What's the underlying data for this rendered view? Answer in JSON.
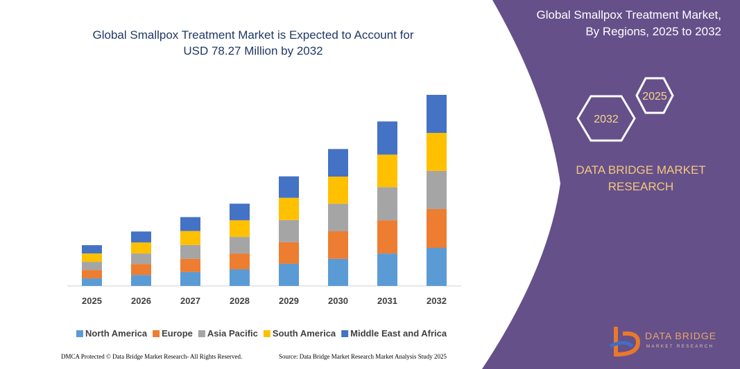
{
  "chart_data": {
    "type": "stacked-bar",
    "title": [
      "Global Smallpox Treatment Market is Expected to Account for",
      "USD 78.27 Million by 2032"
    ],
    "categories": [
      "2025",
      "2026",
      "2027",
      "2028",
      "2029",
      "2030",
      "2031",
      "2032"
    ],
    "series": [
      {
        "name": "North America",
        "color": "#5b9bd5",
        "values": [
          3.1,
          4.5,
          5.7,
          6.8,
          9.1,
          11.1,
          13.3,
          15.6
        ]
      },
      {
        "name": "Europe",
        "color": "#ed7d31",
        "values": [
          3.4,
          4.5,
          5.4,
          6.5,
          8.8,
          11.3,
          13.6,
          15.9
        ]
      },
      {
        "name": "Asia Pacific",
        "color": "#a5a5a5",
        "values": [
          3.4,
          4.3,
          5.7,
          6.8,
          9.1,
          11.3,
          13.6,
          15.6
        ]
      },
      {
        "name": "South America",
        "color": "#ffc000",
        "values": [
          3.4,
          4.5,
          5.7,
          6.8,
          9.1,
          11.1,
          13.3,
          15.6
        ]
      },
      {
        "name": "Middle East and Africa",
        "color": "#4472c4",
        "values": [
          3.4,
          4.5,
          5.7,
          6.8,
          8.8,
          11.3,
          13.6,
          15.6
        ]
      }
    ],
    "ylim": [
      0,
      80
    ],
    "grid": false,
    "legend": "bottom"
  },
  "panel": {
    "title": [
      "Global Smallpox Treatment Market,",
      "By Regions, 2025 to 2032"
    ],
    "hexagons": [
      "2025",
      "2032"
    ],
    "brand": [
      "DATA BRIDGE MARKET",
      "RESEARCH"
    ],
    "logo": [
      "DATA BRIDGE",
      "MARKET RESEARCH"
    ]
  },
  "footer": {
    "left": "DMCA Protected © Data Bridge Market Research- All Rights Reserved.",
    "right": "Source: Data Bridge Market Research Market Analysis Study 2025"
  }
}
